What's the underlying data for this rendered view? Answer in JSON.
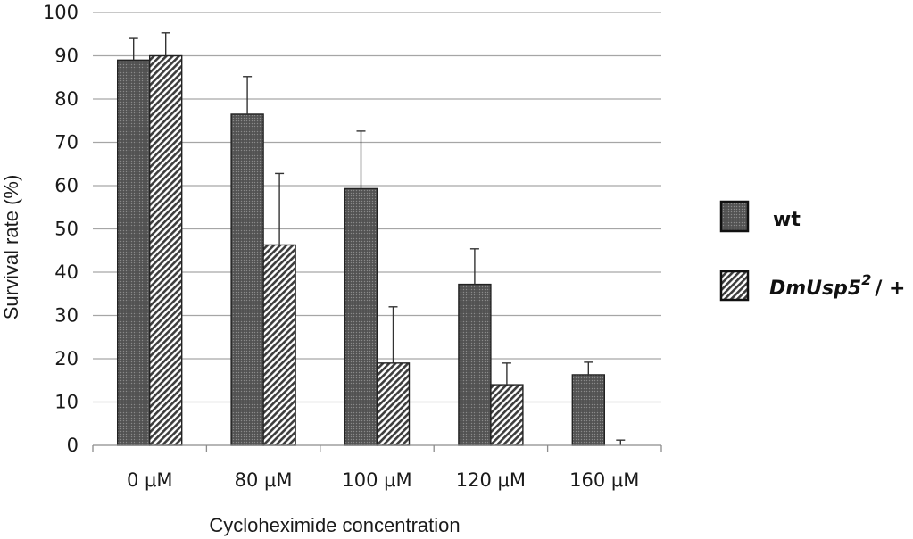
{
  "chart_data": {
    "type": "bar",
    "title": "",
    "xlabel": "Cycloheximide concentration",
    "ylabel": "Survival rate (%)",
    "ylim": [
      0,
      100
    ],
    "yticks": [
      "0",
      "10",
      "20",
      "30",
      "40",
      "50",
      "60",
      "70",
      "80",
      "90",
      "100"
    ],
    "grid": "horizontal",
    "legend_position": "right",
    "categories": [
      "0 μM",
      "80 μM",
      "100 μM",
      "120 μM",
      "160 μM"
    ],
    "series": [
      {
        "name": "wt",
        "values": [
          89,
          76.5,
          59.3,
          37.2,
          16.3
        ],
        "error": [
          5,
          8.7,
          13.3,
          8.2,
          2.9
        ],
        "fill": "dotted-gray"
      },
      {
        "name": "DmUsp5",
        "name_superscript": "2",
        "name_suffix": "/ +",
        "values": [
          90,
          46.3,
          19,
          14,
          0
        ],
        "error": [
          5.3,
          16.5,
          13,
          5,
          1.2
        ],
        "fill": "diagonal-hatch"
      }
    ],
    "colors": {
      "bar_dark": "#4d4d4d",
      "bar_edge": "#222222",
      "grid": "#a6a6a6"
    }
  }
}
